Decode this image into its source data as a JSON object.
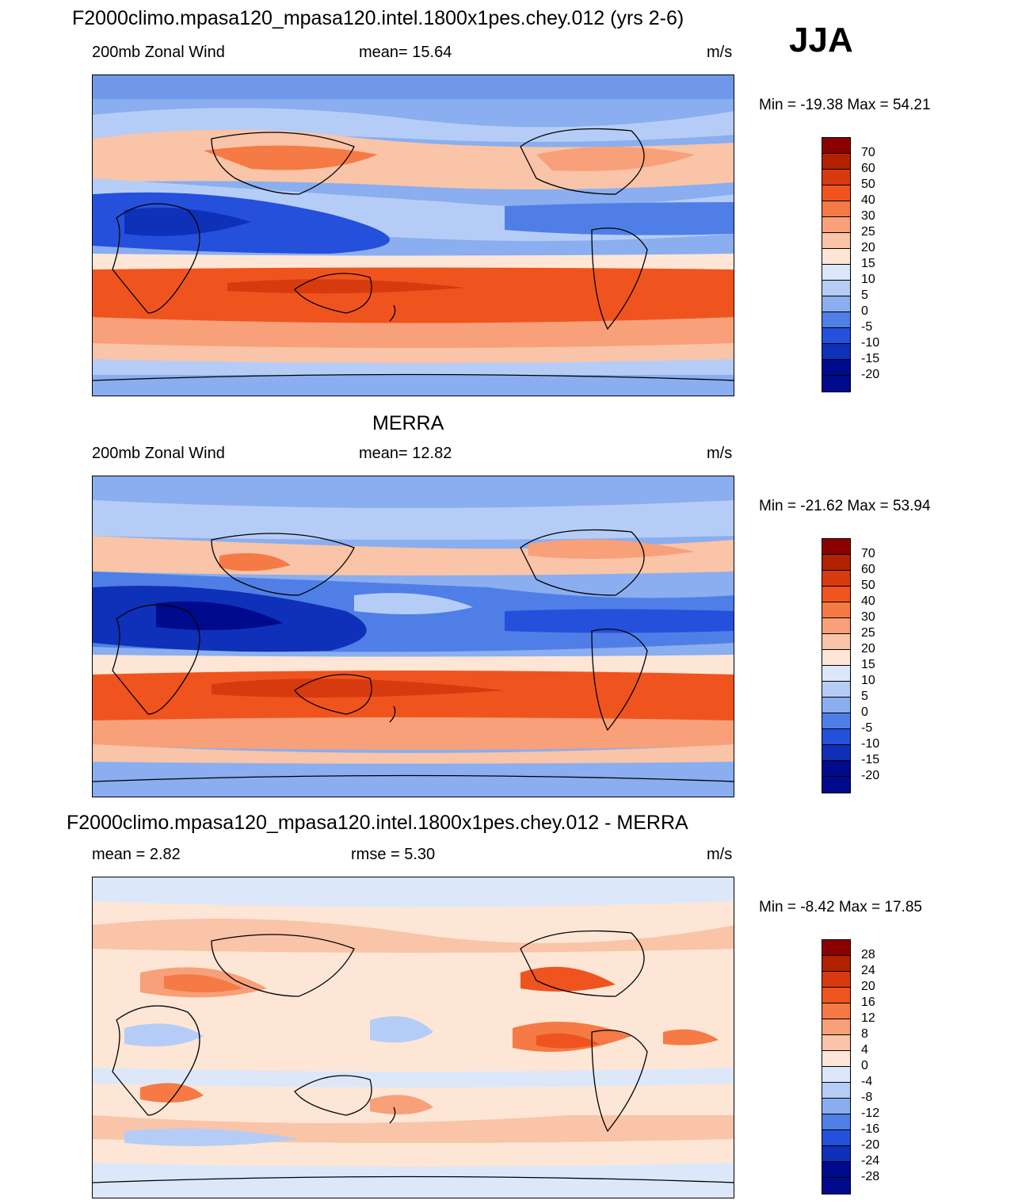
{
  "season": "JJA",
  "panels": [
    {
      "title": "F2000climo.mpasa120_mpasa120.intel.1800x1pes.chey.012 (yrs 2-6)",
      "left": "200mb Zonal Wind",
      "center": "mean=  15.64",
      "right": "m/s",
      "minmax": "Min = -19.38 Max =  54.21",
      "levels": [
        "70",
        "60",
        "50",
        "40",
        "30",
        "25",
        "20",
        "15",
        "10",
        "5",
        "0",
        "-5",
        "-10",
        "-15",
        "-20"
      ]
    },
    {
      "title": "MERRA",
      "left": "200mb Zonal Wind",
      "center": "mean=  12.82",
      "right": "m/s",
      "minmax": "Min = -21.62 Max =  53.94",
      "levels": [
        "70",
        "60",
        "50",
        "40",
        "30",
        "25",
        "20",
        "15",
        "10",
        "5",
        "0",
        "-5",
        "-10",
        "-15",
        "-20"
      ]
    },
    {
      "title": "F2000climo.mpasa120_mpasa120.intel.1800x1pes.chey.012 - MERRA",
      "left": "mean =   2.82",
      "center": "rmse =   5.30",
      "right": "m/s",
      "minmax": "Min =  -8.42 Max =  17.85",
      "levels": [
        "28",
        "24",
        "20",
        "16",
        "12",
        "8",
        "4",
        "0",
        "-4",
        "-8",
        "-12",
        "-16",
        "-20",
        "-24",
        "-28"
      ]
    }
  ],
  "colorbar_colors": [
    "#8b0000",
    "#b22200",
    "#d83a10",
    "#f0541e",
    "#f57a45",
    "#f7a07a",
    "#f9c4a8",
    "#fde6d6",
    "#dce8fa",
    "#b5cdf6",
    "#8aaeef",
    "#4f7fe6",
    "#2550dc",
    "#0f30b8",
    "#000a8c"
  ]
}
